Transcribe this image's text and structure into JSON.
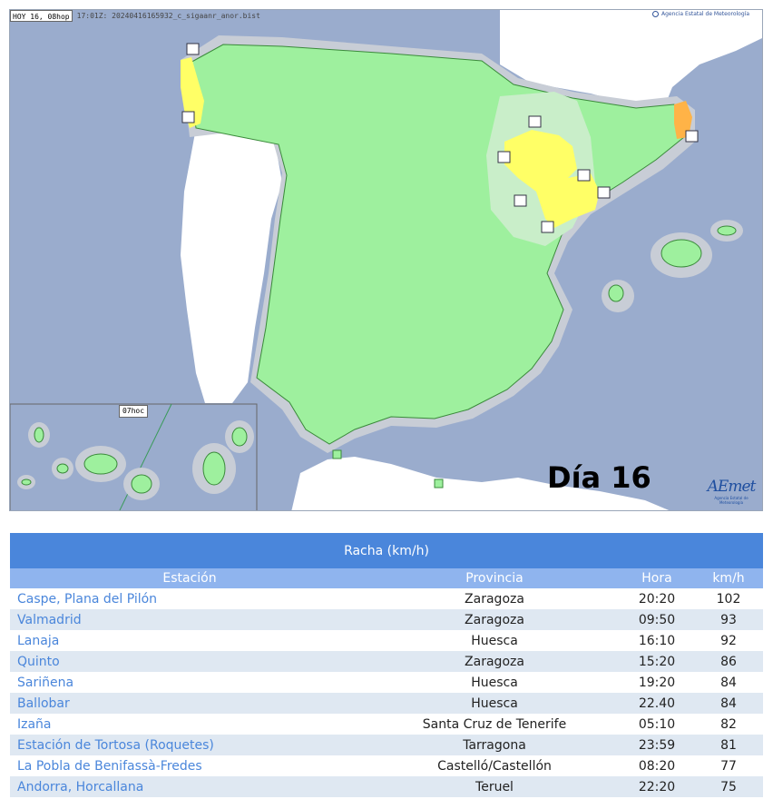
{
  "map": {
    "datetime": "HOY 16, 08hop",
    "filename": "17:01Z: 20240416165932_c_sigaanr_anor.bist",
    "agency": "Agencia Estatal de Meteorología",
    "inset_label": "07hoc",
    "day_label": "Día 16",
    "logo_brand": "AEmet",
    "logo_sub": "Agencia Estatal de Meteorología",
    "colors": {
      "sea": "#9aaccd",
      "green": "#9ef09e",
      "yellow": "#ffff66",
      "orange": "#ffb347",
      "halo": "#c8cdd6"
    }
  },
  "table": {
    "title": "Racha (km/h)",
    "columns": [
      "Estación",
      "Provincia",
      "Hora",
      "km/h"
    ],
    "rows": [
      {
        "station": "Caspe, Plana del Pilón",
        "province": "Zaragoza",
        "time": "20:20",
        "kmh": "102"
      },
      {
        "station": "Valmadrid",
        "province": "Zaragoza",
        "time": "09:50",
        "kmh": "93"
      },
      {
        "station": "Lanaja",
        "province": "Huesca",
        "time": "16:10",
        "kmh": "92"
      },
      {
        "station": "Quinto",
        "province": "Zaragoza",
        "time": "15:20",
        "kmh": "86"
      },
      {
        "station": "Sariñena",
        "province": "Huesca",
        "time": "19:20",
        "kmh": "84"
      },
      {
        "station": "Ballobar",
        "province": "Huesca",
        "time": "22.40",
        "kmh": "84"
      },
      {
        "station": "Izaña",
        "province": "Santa Cruz de Tenerife",
        "time": "05:10",
        "kmh": "82"
      },
      {
        "station": "Estación de Tortosa (Roquetes)",
        "province": "Tarragona",
        "time": "23:59",
        "kmh": "81"
      },
      {
        "station": "La Pobla de Benifassà-Fredes",
        "province": "Castelló/Castellón",
        "time": "08:20",
        "kmh": "77"
      },
      {
        "station": "Andorra, Horcallana",
        "province": "Teruel",
        "time": "22:20",
        "kmh": "75"
      }
    ]
  }
}
